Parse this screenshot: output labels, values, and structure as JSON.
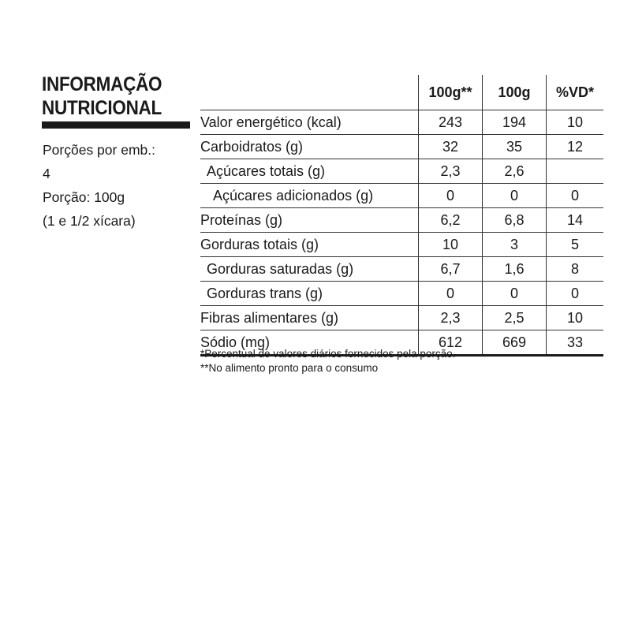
{
  "left": {
    "title_line1": "INFORMAÇÃO",
    "title_line2": "NUTRICIONAL",
    "servings_label": "Porções por emb.:",
    "servings_value": "4",
    "portion": "Porção: 100g",
    "portion_measure": "(1 e 1/2 xícara)"
  },
  "table": {
    "headers": [
      "",
      "100g**",
      "100g",
      "%VD*"
    ],
    "rows": [
      {
        "name": "Valor energético (kcal)",
        "indent": 0,
        "v1": "243",
        "v2": "194",
        "v3": "10"
      },
      {
        "name": "Carboidratos (g)",
        "indent": 0,
        "v1": "32",
        "v2": "35",
        "v3": "12"
      },
      {
        "name": "Açúcares totais (g)",
        "indent": 1,
        "v1": "2,3",
        "v2": "2,6",
        "v3": ""
      },
      {
        "name": "Açúcares adicionados (g)",
        "indent": 2,
        "v1": "0",
        "v2": "0",
        "v3": "0"
      },
      {
        "name": "Proteínas (g)",
        "indent": 0,
        "v1": "6,2",
        "v2": "6,8",
        "v3": "14"
      },
      {
        "name": "Gorduras totais (g)",
        "indent": 0,
        "v1": "10",
        "v2": "3",
        "v3": "5"
      },
      {
        "name": "Gorduras saturadas (g)",
        "indent": 1,
        "v1": "6,7",
        "v2": "1,6",
        "v3": "8"
      },
      {
        "name": "Gorduras trans (g)",
        "indent": 1,
        "v1": "0",
        "v2": "0",
        "v3": "0"
      },
      {
        "name": "Fibras alimentares (g)",
        "indent": 0,
        "v1": "2,3",
        "v2": "2,5",
        "v3": "10"
      },
      {
        "name": "Sódio (mg)",
        "indent": 0,
        "v1": "612",
        "v2": "669",
        "v3": "33"
      }
    ]
  },
  "footnotes": [
    "*Percentual de valores diários fornecidos pela porção.",
    "**No alimento pronto para o consumo"
  ]
}
